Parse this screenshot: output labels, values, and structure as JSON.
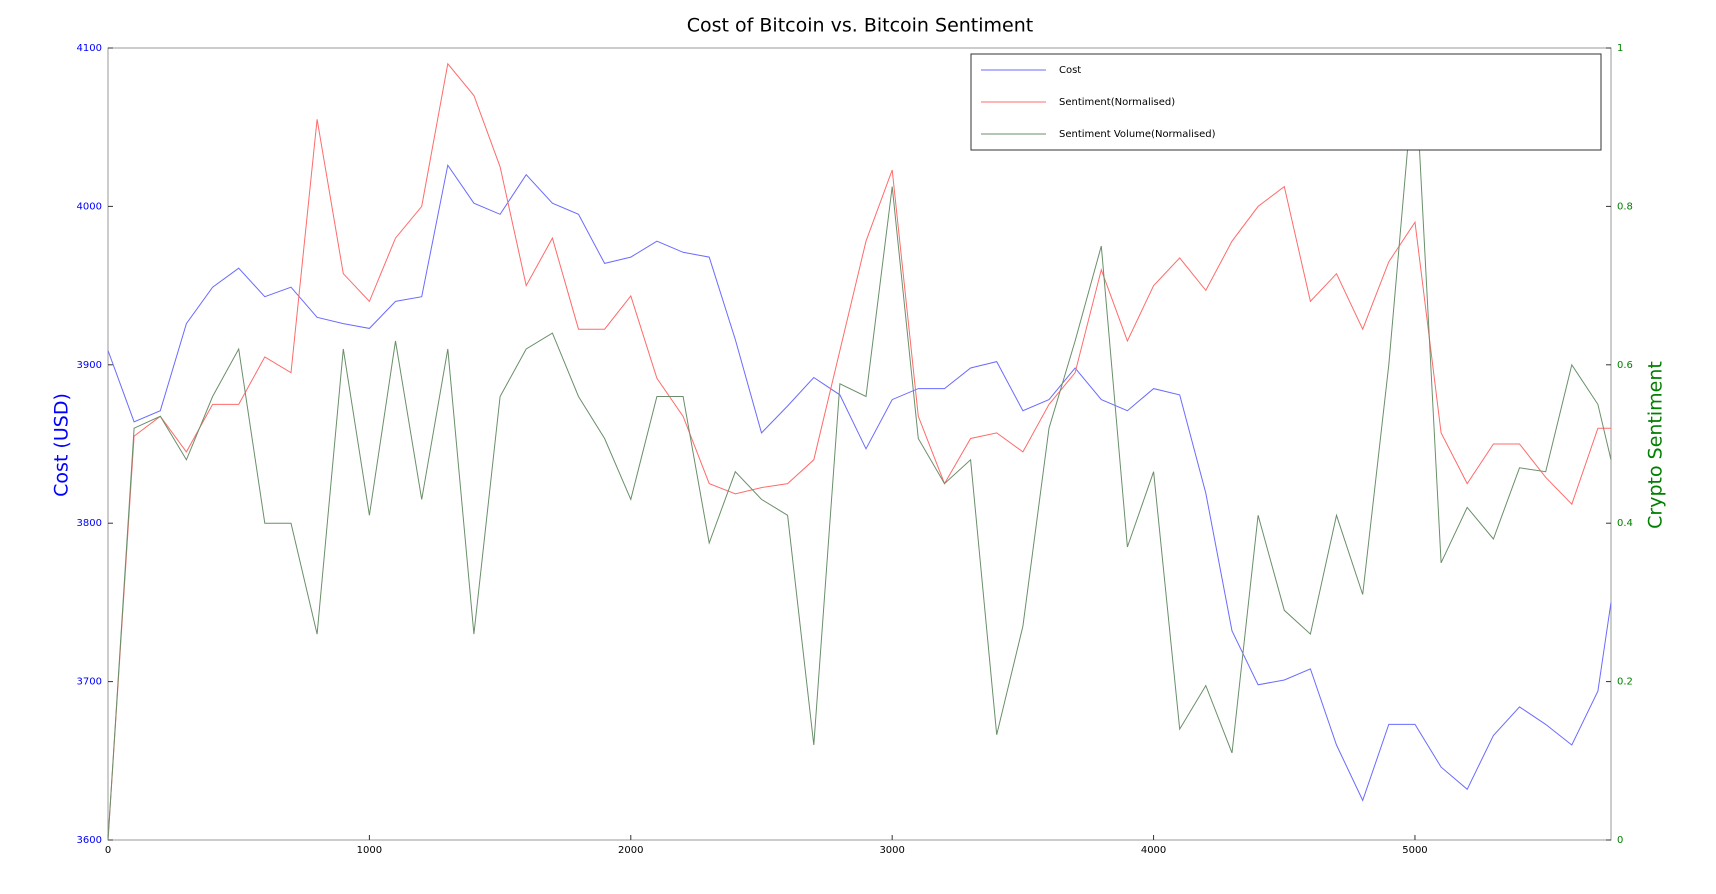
{
  "chart_data": {
    "type": "line",
    "title": "Cost of Bitcoin vs. Bitcoin Sentiment",
    "ylabel": "Cost (USD)",
    "y2label": "Crypto Sentiment",
    "x": [
      0,
      100,
      200,
      300,
      400,
      500,
      600,
      700,
      800,
      900,
      1000,
      1100,
      1200,
      1300,
      1400,
      1500,
      1600,
      1700,
      1800,
      1900,
      2000,
      2100,
      2200,
      2300,
      2400,
      2500,
      2600,
      2700,
      2800,
      2900,
      3000,
      3100,
      3200,
      3300,
      3400,
      3500,
      3600,
      3700,
      3800,
      3900,
      4000,
      4100,
      4200,
      4300,
      4400,
      4500,
      4600,
      4700,
      4800,
      4900,
      5000,
      5100,
      5200,
      5300,
      5400,
      5500,
      5600,
      5700,
      5750
    ],
    "xlim": [
      0,
      5750
    ],
    "xticks": [
      0,
      1000,
      2000,
      3000,
      4000,
      5000
    ],
    "ylim": [
      3600,
      4100
    ],
    "yticks": [
      3600,
      3700,
      3800,
      3900,
      4000,
      4100
    ],
    "y2lim": [
      0,
      1
    ],
    "y2ticks": [
      0,
      0.2,
      0.4,
      0.6,
      0.8,
      1
    ],
    "grid": false,
    "legend": "upper right",
    "series": [
      {
        "name": "Cost",
        "color": "#6b6bff",
        "values": [
          3909,
          3864,
          3871,
          3926,
          3949,
          3961,
          3943,
          3949,
          3930,
          3926,
          3923,
          3940,
          3943,
          4026,
          4002,
          3995,
          4020,
          4002,
          3995,
          3964,
          3968,
          3978,
          3971,
          3968,
          3916,
          3857,
          3874,
          3892,
          3881,
          3847,
          3878,
          3885,
          3885,
          3898,
          3902,
          3871,
          3878,
          3898,
          3878,
          3871,
          3885,
          3881,
          3819,
          3732,
          3698,
          3701,
          3708,
          3660,
          3625,
          3673,
          3673,
          3646,
          3632,
          3666,
          3684,
          3673,
          3660,
          3694,
          3750
        ]
      },
      {
        "name": "Sentiment(Normalised)",
        "color": "#ff6b6b",
        "axis": "y2",
        "values": [
          0,
          0.51,
          0.535,
          0.49,
          0.55,
          0.55,
          0.61,
          0.59,
          0.91,
          0.715,
          0.68,
          0.76,
          0.8,
          0.98,
          0.94,
          0.85,
          0.7,
          0.76,
          0.645,
          0.645,
          0.687,
          0.583,
          0.535,
          0.45,
          0.437,
          0.445,
          0.45,
          0.48,
          0.618,
          0.756,
          0.846,
          0.535,
          0.45,
          0.507,
          0.514,
          0.49,
          0.55,
          0.59,
          0.72,
          0.63,
          0.7,
          0.735,
          0.694,
          0.756,
          0.8,
          0.825,
          0.68,
          0.715,
          0.645,
          0.73,
          0.78,
          0.514,
          0.45,
          0.5,
          0.5,
          0.458,
          0.424,
          0.52,
          0.52
        ]
      },
      {
        "name": "Sentiment Volume(Normalised)",
        "color": "#6a8f6a",
        "axis": "y2",
        "values": [
          0,
          0.52,
          0.535,
          0.48,
          0.56,
          0.62,
          0.4,
          0.4,
          0.26,
          0.62,
          0.41,
          0.63,
          0.43,
          0.62,
          0.26,
          0.56,
          0.62,
          0.64,
          0.56,
          0.507,
          0.43,
          0.56,
          0.56,
          0.375,
          0.465,
          0.43,
          0.41,
          0.12,
          0.576,
          0.56,
          0.825,
          0.507,
          0.45,
          0.48,
          0.133,
          0.27,
          0.52,
          0.63,
          0.75,
          0.37,
          0.465,
          0.14,
          0.195,
          0.11,
          0.41,
          0.29,
          0.26,
          0.41,
          0.31,
          0.6,
          0.98,
          0.35,
          0.42,
          0.38,
          0.47,
          0.465,
          0.6,
          0.55,
          0.48
        ]
      }
    ]
  }
}
